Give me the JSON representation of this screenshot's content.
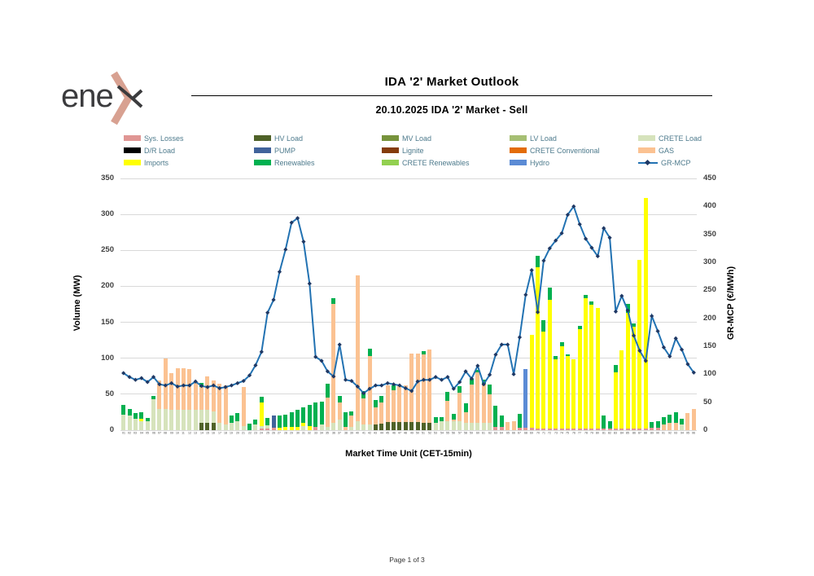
{
  "header": {
    "title": "IDA '2' Market Outlook",
    "subtitle": "20.10.2025  IDA '2' Market - Sell"
  },
  "logo": {
    "text": "ene",
    "text_color": "#3B3B3D",
    "accent_color": "#D8A191"
  },
  "footer": {
    "text": "Page 1 of 3"
  },
  "legend": {
    "text_color": "#4D7A8C",
    "items": [
      {
        "key": "sysLosses",
        "label": "Sys. Losses",
        "type": "box"
      },
      {
        "key": "hvLoad",
        "label": "HV Load",
        "type": "box"
      },
      {
        "key": "mvLoad",
        "label": "MV Load",
        "type": "box"
      },
      {
        "key": "lvLoad",
        "label": "LV Load",
        "type": "box"
      },
      {
        "key": "creteLoad",
        "label": "CRETE Load",
        "type": "box"
      },
      {
        "key": "drLoad",
        "label": "D/R Load",
        "type": "box"
      },
      {
        "key": "pump",
        "label": "PUMP",
        "type": "box"
      },
      {
        "key": "lignite",
        "label": "Lignite",
        "type": "box"
      },
      {
        "key": "creteConv",
        "label": "CRETE Conventional",
        "type": "box"
      },
      {
        "key": "gas",
        "label": "GAS",
        "type": "box"
      },
      {
        "key": "imports",
        "label": "Imports",
        "type": "box"
      },
      {
        "key": "renewables",
        "label": "Renewables",
        "type": "box"
      },
      {
        "key": "creteRen",
        "label": "CRETE Renewables",
        "type": "box"
      },
      {
        "key": "hydro",
        "label": "Hydro",
        "type": "box"
      },
      {
        "key": "mcp",
        "label": "GR-MCP",
        "type": "line"
      }
    ]
  },
  "chart_data": {
    "type": "combo-stacked-bar-line",
    "x_title": "Market Time Unit (CET-15min)",
    "y_left": {
      "title": "Volume (MW)",
      "min": 0,
      "max": 350,
      "step": 50
    },
    "y_right": {
      "title": "GR-MCP (€/MWh)",
      "min": 0,
      "max": 450,
      "step": 50
    },
    "grid": true,
    "series_colors": {
      "sysLosses": "#E09694",
      "hvLoad": "#4F6228",
      "mvLoad": "#77933C",
      "lvLoad": "#A6BF74",
      "creteLoad": "#D6E3BC",
      "drLoad": "#000000",
      "pump": "#41639B",
      "lignite": "#843C0C",
      "creteConv": "#E36C09",
      "gas": "#FBC292",
      "imports": "#FFFF00",
      "renewables": "#00B050",
      "creteRen": "#92D050",
      "hydro": "#5B8BD5"
    },
    "stack_order": [
      "sysLosses",
      "hvLoad",
      "mvLoad",
      "lvLoad",
      "creteLoad",
      "drLoad",
      "pump",
      "lignite",
      "creteConv",
      "gas",
      "imports",
      "renewables",
      "creteRen",
      "hydro"
    ],
    "categories": [
      "01",
      "02",
      "03",
      "04",
      "05",
      "06",
      "07",
      "08",
      "09",
      "10",
      "11",
      "12",
      "13",
      "14",
      "15",
      "16",
      "17",
      "18",
      "19",
      "20",
      "21",
      "22",
      "23",
      "24",
      "25",
      "26",
      "27",
      "28",
      "29",
      "30",
      "31",
      "32",
      "33",
      "34",
      "35",
      "36",
      "37",
      "38",
      "39",
      "40",
      "41",
      "42",
      "43",
      "44",
      "45",
      "46",
      "47",
      "48",
      "49",
      "50",
      "51",
      "52",
      "53",
      "54",
      "55",
      "56",
      "57",
      "58",
      "59",
      "60",
      "61",
      "62",
      "63",
      "64",
      "65",
      "66",
      "67",
      "68",
      "69",
      "70",
      "71",
      "72",
      "73",
      "74",
      "75",
      "76",
      "77",
      "78",
      "79",
      "80",
      "81",
      "82",
      "83",
      "84",
      "85",
      "86",
      "87",
      "88",
      "89",
      "90",
      "91",
      "92",
      "93",
      "94",
      "95",
      "96"
    ],
    "bars": [
      {
        "creteLoad": 22,
        "renewables": 13
      },
      {
        "creteLoad": 20,
        "renewables": 10
      },
      {
        "creteLoad": 16,
        "renewables": 8
      },
      {
        "creteLoad": 13,
        "imports": 3,
        "renewables": 9
      },
      {
        "creteLoad": 12,
        "renewables": 5
      },
      {
        "creteLoad": 43,
        "renewables": 5
      },
      {
        "creteLoad": 29,
        "gas": 40
      },
      {
        "creteLoad": 29,
        "gas": 71
      },
      {
        "creteLoad": 28,
        "gas": 51
      },
      {
        "creteLoad": 28,
        "gas": 58
      },
      {
        "creteLoad": 28,
        "gas": 58
      },
      {
        "creteLoad": 28,
        "gas": 57
      },
      {
        "creteLoad": 28,
        "gas": 40
      },
      {
        "hvLoad": 10,
        "creteLoad": 18,
        "gas": 32,
        "renewables": 6
      },
      {
        "hvLoad": 10,
        "creteLoad": 18,
        "gas": 47
      },
      {
        "hvLoad": 10,
        "creteLoad": 16,
        "gas": 43
      },
      {
        "creteLoad": 10,
        "gas": 55
      },
      {
        "creteLoad": 8,
        "gas": 54
      },
      {
        "creteLoad": 10,
        "renewables": 10
      },
      {
        "creteLoad": 12,
        "renewables": 12
      },
      {
        "creteLoad": 6,
        "gas": 54
      },
      {
        "renewables": 9
      },
      {
        "creteLoad": 8,
        "renewables": 7
      },
      {
        "sysLosses": 2,
        "creteLoad": 4,
        "imports": 33,
        "renewables": 7
      },
      {
        "sysLosses": 2,
        "creteLoad": 5,
        "renewables": 10
      },
      {
        "sysLosses": 3,
        "pump": 17
      },
      {
        "imports": 3,
        "renewables": 17
      },
      {
        "imports": 4,
        "renewables": 18
      },
      {
        "imports": 5,
        "renewables": 20
      },
      {
        "imports": 4,
        "renewables": 24
      },
      {
        "creteLoad": 6,
        "imports": 4,
        "renewables": 22
      },
      {
        "imports": 6,
        "renewables": 29
      },
      {
        "sysLosses": 4,
        "renewables": 35
      },
      {
        "creteLoad": 8,
        "renewables": 32
      },
      {
        "creteLoad": 5,
        "gas": 40,
        "renewables": 20
      },
      {
        "creteLoad": 10,
        "gas": 166,
        "renewables": 8
      },
      {
        "creteLoad": 15,
        "gas": 23,
        "renewables": 10
      },
      {
        "gas": 5,
        "renewables": 20
      },
      {
        "creteLoad": 5,
        "gas": 15,
        "renewables": 6
      },
      {
        "creteLoad": 12,
        "gas": 203
      },
      {
        "creteLoad": 8,
        "gas": 36,
        "renewables": 10
      },
      {
        "creteLoad": 8,
        "gas": 95,
        "renewables": 10
      },
      {
        "hvLoad": 8,
        "gas": 24,
        "renewables": 10
      },
      {
        "hvLoad": 9,
        "gas": 30,
        "renewables": 9
      },
      {
        "hvLoad": 11,
        "gas": 51
      },
      {
        "hvLoad": 11,
        "gas": 45,
        "renewables": 6
      },
      {
        "hvLoad": 11,
        "gas": 50
      },
      {
        "hvLoad": 11,
        "gas": 51
      },
      {
        "hvLoad": 11,
        "gas": 96
      },
      {
        "hvLoad": 11,
        "gas": 96
      },
      {
        "hvLoad": 10,
        "gas": 95,
        "renewables": 5
      },
      {
        "hvLoad": 10,
        "gas": 102
      },
      {
        "creteLoad": 10,
        "renewables": 8
      },
      {
        "creteLoad": 12,
        "renewables": 6
      },
      {
        "creteLoad": 12,
        "gas": 29,
        "renewables": 12
      },
      {
        "creteLoad": 12,
        "gas": 3,
        "renewables": 8
      },
      {
        "creteLoad": 12,
        "gas": 40,
        "renewables": 9
      },
      {
        "creteLoad": 10,
        "gas": 15,
        "renewables": 12
      },
      {
        "creteLoad": 10,
        "gas": 53,
        "renewables": 8
      },
      {
        "creteLoad": 10,
        "gas": 70,
        "renewables": 4
      },
      {
        "creteLoad": 10,
        "gas": 55,
        "renewables": 5
      },
      {
        "creteLoad": 10,
        "gas": 40,
        "renewables": 14
      },
      {
        "sysLosses": 4,
        "renewables": 30
      },
      {
        "sysLosses": 5,
        "renewables": 15
      },
      {
        "gas": 11
      },
      {
        "gas": 12
      },
      {
        "sysLosses": 3,
        "renewables": 20
      },
      {
        "sysLosses": 3,
        "hydro": 82
      },
      {
        "sysLosses": 3,
        "imports": 129
      },
      {
        "sysLosses": 2,
        "imports": 225,
        "renewables": 15
      },
      {
        "sysLosses": 2,
        "imports": 135,
        "renewables": 16
      },
      {
        "sysLosses": 2,
        "imports": 179,
        "renewables": 17
      },
      {
        "sysLosses": 2,
        "imports": 96,
        "renewables": 5
      },
      {
        "sysLosses": 2,
        "imports": 115,
        "renewables": 5
      },
      {
        "sysLosses": 2,
        "imports": 101,
        "renewables": 2
      },
      {
        "sysLosses": 2,
        "imports": 96
      },
      {
        "sysLosses": 2,
        "imports": 138,
        "renewables": 5
      },
      {
        "sysLosses": 2,
        "imports": 182,
        "renewables": 4
      },
      {
        "sysLosses": 2,
        "imports": 173,
        "renewables": 4
      },
      {
        "sysLosses": 2,
        "imports": 168
      },
      {
        "sysLosses": 2,
        "renewables": 18
      },
      {
        "sysLosses": 2,
        "renewables": 10
      },
      {
        "sysLosses": 2,
        "imports": 78,
        "renewables": 11
      },
      {
        "sysLosses": 2,
        "imports": 109
      },
      {
        "sysLosses": 2,
        "imports": 161,
        "renewables": 13
      },
      {
        "sysLosses": 2,
        "imports": 142,
        "renewables": 4
      },
      {
        "sysLosses": 2,
        "imports": 235
      },
      {
        "sysLosses": 2,
        "imports": 321
      },
      {
        "sysLosses": 3,
        "renewables": 8
      },
      {
        "sysLosses": 3,
        "renewables": 10
      },
      {
        "gas": 8,
        "renewables": 10
      },
      {
        "gas": 10,
        "renewables": 12
      },
      {
        "gas": 10,
        "renewables": 15
      },
      {
        "creteLoad": 8,
        "renewables": 8
      },
      {
        "gas": 24
      },
      {
        "gas": 29
      }
    ],
    "line": {
      "name": "GR-MCP",
      "color": "#2272B2",
      "marker_color": "#1F3864",
      "axis": "right",
      "values": [
        102,
        95,
        90,
        93,
        86,
        95,
        82,
        80,
        84,
        78,
        80,
        80,
        87,
        79,
        77,
        80,
        75,
        77,
        80,
        84,
        88,
        98,
        116,
        140,
        210,
        233,
        283,
        323,
        371,
        379,
        337,
        262,
        131,
        124,
        105,
        96,
        153,
        90,
        88,
        78,
        66,
        74,
        80,
        80,
        84,
        82,
        80,
        75,
        70,
        87,
        90,
        90,
        95,
        90,
        95,
        74,
        86,
        105,
        92,
        115,
        82,
        99,
        135,
        153,
        153,
        100,
        166,
        242,
        286,
        211,
        303,
        325,
        339,
        352,
        385,
        400,
        368,
        342,
        326,
        311,
        361,
        344,
        212,
        240,
        214,
        169,
        142,
        124,
        204,
        177,
        148,
        132,
        164,
        144,
        118,
        103
      ]
    }
  }
}
